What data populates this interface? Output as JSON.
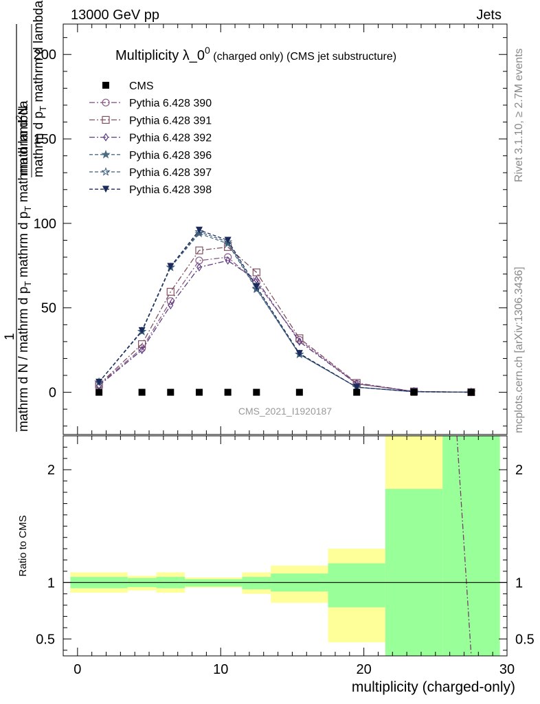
{
  "header": {
    "left": "13000 GeV pp",
    "right": "Jets"
  },
  "side_labels": {
    "rivet": "Rivet 3.1.10, ≥ 2.7M events",
    "mcplots": "mcplots.cern.ch [arXiv:1306.3436]"
  },
  "chart_data": [
    {
      "type": "line",
      "title": "Multiplicity λ_0",
      "title_sup": "0",
      "title_suffix": "(charged only) (CMS jet substructure)",
      "watermark": "CMS_2021_I1920187",
      "ylabel_fraction_top": "mathrm d",
      "ylabel_fraction_top_sup": "2",
      "ylabel_fraction_top_end": "N",
      "ylabel_fraction_bottom": "mathrm d p",
      "ylabel_fraction_bottom_sub": "T",
      "ylabel_fraction_bottom_end": " mathrm d lambda",
      "ylabel_prefix_num": "1",
      "ylabel_prefix_den": "mathrm d N / mathrm d p",
      "ylabel_prefix_den_sub": "T",
      "ylabel_prefix_den_end": " mathrm d p",
      "ylabel_prefix_den_sub2": "T",
      "ylabel_prefix_den_end2": " mathrm d lambda",
      "xlim": [
        -1,
        30
      ],
      "ylim": [
        -25,
        218
      ],
      "yticks": [
        0,
        50,
        100,
        150,
        200
      ],
      "legend_position": "top-left",
      "x": [
        1.5,
        4.5,
        6.5,
        8.5,
        10.5,
        12.5,
        15.5,
        19.5,
        23.5,
        27.5
      ],
      "data": {
        "name": "CMS",
        "color": "#000000",
        "y": [
          0,
          0,
          0,
          0,
          0,
          0,
          0,
          0,
          0,
          0
        ],
        "xerr_edges": [
          [
            0,
            3
          ],
          [
            3,
            6
          ],
          [
            6,
            7
          ],
          [
            7,
            10
          ],
          [
            10,
            11
          ],
          [
            11,
            14
          ],
          [
            14,
            17
          ],
          [
            17,
            22
          ],
          [
            22,
            25
          ],
          [
            25,
            30
          ]
        ]
      },
      "series": [
        {
          "name": "Pythia 6.428 390",
          "color": "#8a5a8a",
          "marker": "circle",
          "values": [
            4.5,
            26,
            54,
            78,
            80,
            65,
            31,
            5,
            0.5,
            0.05
          ]
        },
        {
          "name": "Pythia 6.428 391",
          "color": "#805060",
          "marker": "square",
          "values": [
            4.5,
            28.5,
            59.5,
            84,
            86,
            71,
            32,
            5.5,
            0.5,
            0.05
          ]
        },
        {
          "name": "Pythia 6.428 392",
          "color": "#5a3a80",
          "marker": "diamond",
          "values": [
            4,
            25,
            51.5,
            74,
            78,
            66.5,
            30,
            5,
            0.5,
            0.05
          ]
        },
        {
          "name": "Pythia 6.428 396",
          "color": "#4a6a80",
          "marker": "star",
          "values": [
            6,
            36,
            74,
            94,
            88,
            61,
            22.5,
            3,
            0.3,
            0.03
          ]
        },
        {
          "name": "Pythia 6.428 397",
          "color": "#3a5a7a",
          "marker": "star-open",
          "values": [
            6,
            36,
            74,
            95,
            89,
            61.5,
            22.5,
            3,
            0.3,
            0.03
          ]
        },
        {
          "name": "Pythia 6.428 398",
          "color": "#1a2a5a",
          "marker": "triangle-down",
          "values": [
            6,
            36.5,
            74.5,
            96,
            90,
            62.5,
            23,
            3,
            0.3,
            0.03
          ]
        }
      ]
    },
    {
      "type": "area",
      "ylabel": "Ratio to CMS",
      "xlabel": "multiplicity (charged-only)",
      "xlim": [
        -1,
        30
      ],
      "ylim": [
        0.35,
        2.3
      ],
      "yticks": [
        0.5,
        1,
        2
      ],
      "xticks": [
        0,
        10,
        20,
        30
      ],
      "reference_line": 1,
      "band_colors": {
        "stat": "#99ff99",
        "total": "#ffff99"
      },
      "bands": [
        {
          "x0": -0.5,
          "x1": 3.5,
          "stat": [
            0.95,
            1.05
          ],
          "total": [
            0.91,
            1.09
          ]
        },
        {
          "x0": 3.5,
          "x1": 5.5,
          "stat": [
            0.96,
            1.04
          ],
          "total": [
            0.93,
            1.06
          ]
        },
        {
          "x0": 5.5,
          "x1": 7.5,
          "stat": [
            0.95,
            1.05
          ],
          "total": [
            0.91,
            1.09
          ]
        },
        {
          "x0": 7.5,
          "x1": 11.5,
          "stat": [
            0.965,
            1.03
          ],
          "total": [
            0.955,
            1.045
          ]
        },
        {
          "x0": 11.5,
          "x1": 13.5,
          "stat": [
            0.94,
            1.05
          ],
          "total": [
            0.9,
            1.09
          ]
        },
        {
          "x0": 13.5,
          "x1": 17.5,
          "stat": [
            0.92,
            1.08
          ],
          "total": [
            0.82,
            1.15
          ]
        },
        {
          "x0": 17.5,
          "x1": 21.5,
          "stat": [
            0.78,
            1.17
          ],
          "total": [
            0.47,
            1.3
          ]
        },
        {
          "x0": 21.5,
          "x1": 25.5,
          "stat": [
            0.3,
            1.83
          ],
          "total": [
            0.3,
            2.5
          ]
        },
        {
          "x0": 25.5,
          "x1": 29.5,
          "stat": [
            0.3,
            2.5
          ],
          "total": [
            0.3,
            2.5
          ]
        }
      ],
      "ratio_curve": {
        "name": "Pythia 6.428 390",
        "color": "#7a3a6a",
        "x": [
          26.5,
          27.5
        ],
        "y": [
          2.3,
          0.35
        ]
      }
    }
  ]
}
